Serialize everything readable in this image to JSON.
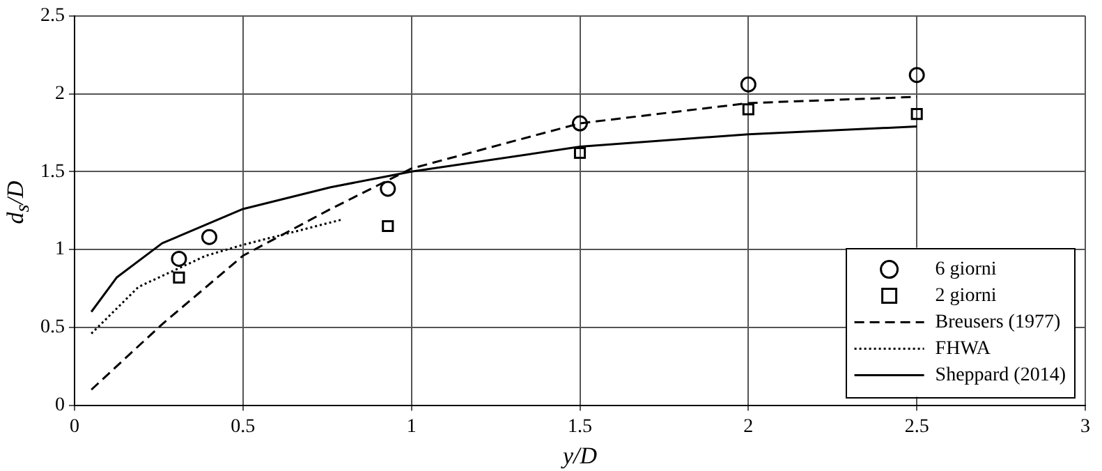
{
  "chart_data": {
    "type": "scatter",
    "xlabel": "y/D",
    "ylabel": "d$_{s}$/D",
    "xlim": [
      0,
      3
    ],
    "xticks": [
      0,
      0.5,
      1,
      1.5,
      2,
      2.5,
      3
    ],
    "ylim": [
      0,
      2.5
    ],
    "yticks": [
      0,
      0.5,
      1,
      1.5,
      2,
      2.5
    ],
    "grid": true,
    "legend": "bottom right",
    "series": [
      {
        "name": "6 giorni",
        "type": "scatter",
        "marker": "circle",
        "color": "#000000",
        "x": [
          0.31,
          0.4,
          0.93,
          1.5,
          2.0,
          2.5
        ],
        "values": [
          0.94,
          1.08,
          1.39,
          1.81,
          2.06,
          2.12
        ]
      },
      {
        "name": "2 giorni",
        "type": "scatter",
        "marker": "square",
        "color": "#000000",
        "x": [
          0.31,
          0.93,
          1.5,
          2.0,
          2.5
        ],
        "values": [
          0.82,
          1.15,
          1.62,
          1.9,
          1.87
        ]
      },
      {
        "name": "Breusers (1977)",
        "type": "line",
        "line_style": "dashed",
        "color": "#000000",
        "x": [
          0.05,
          0.26,
          0.5,
          0.76,
          1.0,
          1.5,
          2.0,
          2.5
        ],
        "values": [
          0.1,
          0.52,
          0.96,
          1.26,
          1.52,
          1.81,
          1.94,
          1.98
        ]
      },
      {
        "name": "FHWA",
        "type": "line",
        "line_style": "dotted",
        "color": "#000000",
        "x": [
          0.05,
          0.19,
          0.39,
          0.5,
          0.79
        ],
        "values": [
          0.46,
          0.76,
          0.96,
          1.03,
          1.19
        ]
      },
      {
        "name": "Sheppard (2014)",
        "type": "line",
        "line_style": "solid",
        "color": "#000000",
        "x": [
          0.05,
          0.125,
          0.26,
          0.5,
          0.76,
          1.0,
          1.5,
          2.0,
          2.5
        ],
        "values": [
          0.6,
          0.82,
          1.04,
          1.26,
          1.4,
          1.5,
          1.66,
          1.74,
          1.79
        ]
      }
    ]
  }
}
